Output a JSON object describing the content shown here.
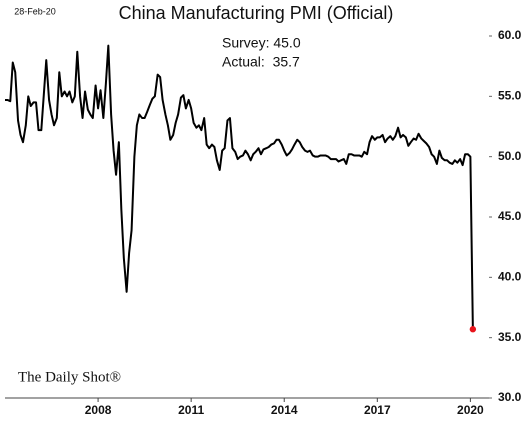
{
  "chart_data": {
    "type": "line",
    "title": "China Manufacturing PMI (Official)",
    "date": "28-Feb-20",
    "annotations": [
      "Survey: 45.0",
      "Actual:  35.7"
    ],
    "source": "The Daily Shot®",
    "color": "#000000",
    "last_point_color": "#e8141b",
    "grid": false,
    "x": [
      2005,
      2005.08,
      2005.17,
      2005.25,
      2005.33,
      2005.42,
      2005.5,
      2005.58,
      2005.67,
      2005.75,
      2005.83,
      2005.92,
      2006,
      2006.08,
      2006.17,
      2006.25,
      2006.33,
      2006.42,
      2006.5,
      2006.58,
      2006.67,
      2006.75,
      2006.83,
      2006.92,
      2007,
      2007.08,
      2007.17,
      2007.25,
      2007.33,
      2007.42,
      2007.5,
      2007.58,
      2007.67,
      2007.75,
      2007.83,
      2007.92,
      2008,
      2008.08,
      2008.17,
      2008.25,
      2008.33,
      2008.42,
      2008.5,
      2008.58,
      2008.67,
      2008.75,
      2008.83,
      2008.92,
      2009,
      2009.08,
      2009.17,
      2009.25,
      2009.33,
      2009.42,
      2009.5,
      2009.58,
      2009.67,
      2009.75,
      2009.83,
      2009.92,
      2010,
      2010.08,
      2010.17,
      2010.25,
      2010.33,
      2010.42,
      2010.5,
      2010.58,
      2010.67,
      2010.75,
      2010.83,
      2010.92,
      2011,
      2011.08,
      2011.17,
      2011.25,
      2011.33,
      2011.42,
      2011.5,
      2011.58,
      2011.67,
      2011.75,
      2011.83,
      2011.92,
      2012,
      2012.08,
      2012.17,
      2012.25,
      2012.33,
      2012.42,
      2012.5,
      2012.58,
      2012.67,
      2012.75,
      2012.83,
      2012.92,
      2013,
      2013.08,
      2013.17,
      2013.25,
      2013.33,
      2013.42,
      2013.5,
      2013.58,
      2013.67,
      2013.75,
      2013.83,
      2013.92,
      2014,
      2014.08,
      2014.17,
      2014.25,
      2014.33,
      2014.42,
      2014.5,
      2014.58,
      2014.67,
      2014.75,
      2014.83,
      2014.92,
      2015,
      2015.08,
      2015.17,
      2015.25,
      2015.33,
      2015.42,
      2015.5,
      2015.58,
      2015.67,
      2015.75,
      2015.83,
      2015.92,
      2016,
      2016.08,
      2016.17,
      2016.25,
      2016.33,
      2016.42,
      2016.5,
      2016.58,
      2016.67,
      2016.75,
      2016.83,
      2016.92,
      2017,
      2017.08,
      2017.17,
      2017.25,
      2017.33,
      2017.42,
      2017.5,
      2017.58,
      2017.67,
      2017.75,
      2017.83,
      2017.92,
      2018,
      2018.08,
      2018.17,
      2018.25,
      2018.33,
      2018.42,
      2018.5,
      2018.58,
      2018.67,
      2018.75,
      2018.83,
      2018.92,
      2019,
      2019.08,
      2019.17,
      2019.25,
      2019.33,
      2019.42,
      2019.5,
      2019.58,
      2019.67,
      2019.75,
      2019.83,
      2019.92,
      2020,
      2020.08
    ],
    "values": [
      54.7,
      54.7,
      54.6,
      57.8,
      57.0,
      53.0,
      51.8,
      51.2,
      52.6,
      55.0,
      54.2,
      54.5,
      54.5,
      52.2,
      52.2,
      55.1,
      58.0,
      54.7,
      53.5,
      52.6,
      53.2,
      57.0,
      55.0,
      55.4,
      55.0,
      55.4,
      54.5,
      55.0,
      58.7,
      55.0,
      53.2,
      55.4,
      53.9,
      53.5,
      53.2,
      55.9,
      54.0,
      55.5,
      53.2,
      56.0,
      59.2,
      53.5,
      50.5,
      48.5,
      51.2,
      45.6,
      41.6,
      38.8,
      42.0,
      43.9,
      50.0,
      52.6,
      53.5,
      53.2,
      53.2,
      53.7,
      54.3,
      54.8,
      55.0,
      56.8,
      56.6,
      54.7,
      53.5,
      52.6,
      51.4,
      51.8,
      52.8,
      53.5,
      54.9,
      55.1,
      54.0,
      54.7,
      54.0,
      52.8,
      52.4,
      52.6,
      52.2,
      53.2,
      51.0,
      50.7,
      51.0,
      50.8,
      49.7,
      48.9,
      50.5,
      50.7,
      53.0,
      53.2,
      50.7,
      50.4,
      49.8,
      50.0,
      50.1,
      50.5,
      50.2,
      49.7,
      50.2,
      50.4,
      50.7,
      50.2,
      50.6,
      50.7,
      50.8,
      51.0,
      51.1,
      51.4,
      51.4,
      51.0,
      50.5,
      50.1,
      50.3,
      50.6,
      51.0,
      51.4,
      51.2,
      50.8,
      50.5,
      50.4,
      50.5,
      50.1,
      50.0,
      50.0,
      50.1,
      50.1,
      50.1,
      50.0,
      49.8,
      49.8,
      49.8,
      49.6,
      49.7,
      49.8,
      49.4,
      50.2,
      50.2,
      50.1,
      50.1,
      50.1,
      50.0,
      50.4,
      50.2,
      51.2,
      51.7,
      51.4,
      51.6,
      51.6,
      51.8,
      51.2,
      51.5,
      51.7,
      51.4,
      51.7,
      52.4,
      51.6,
      51.8,
      51.6,
      50.9,
      51.2,
      51.5,
      51.4,
      51.9,
      51.5,
      51.3,
      51.1,
      50.8,
      50.2,
      50.0,
      49.4,
      50.5,
      49.9,
      49.7,
      49.7,
      49.5,
      49.4,
      49.7,
      49.5,
      49.8,
      49.3,
      50.2,
      50.2,
      50.0,
      35.7
    ],
    "xlim": [
      2005.0,
      2020.6
    ],
    "xticks": [
      2008,
      2011,
      2014,
      2017,
      2020
    ],
    "ylim": [
      30,
      60
    ],
    "yticks": [
      {
        "value": 30,
        "label": "30.0"
      },
      {
        "value": 35,
        "label": "35.0"
      },
      {
        "value": 40,
        "label": "40.0"
      },
      {
        "value": 45,
        "label": "45.0"
      },
      {
        "value": 50,
        "label": "50.0"
      },
      {
        "value": 55,
        "label": "55.0"
      },
      {
        "value": 60,
        "label": "60.0"
      }
    ]
  }
}
